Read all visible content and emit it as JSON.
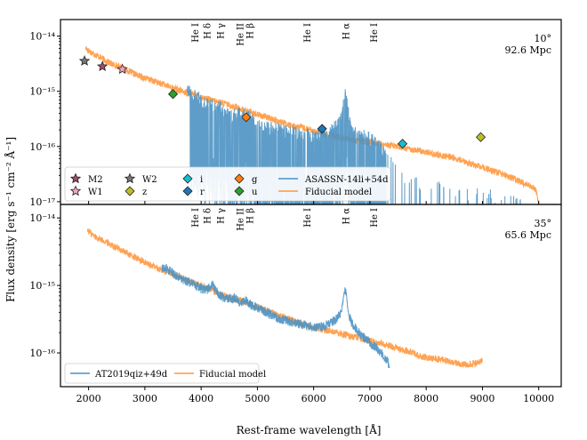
{
  "chart_data": {
    "type": "line",
    "shared": {
      "ylabel": "Flux density [erg s⁻¹ cm⁻² Å⁻¹]",
      "xlabel": "Rest-frame wavelength [Å]",
      "xlim": [
        1500,
        10400
      ],
      "xticks": [
        2000,
        3000,
        4000,
        5000,
        6000,
        7000,
        8000,
        9000,
        10000
      ],
      "xtick_labels": [
        "2000",
        "3000",
        "4000",
        "5000",
        "6000",
        "7000",
        "8000",
        "9000",
        "10000"
      ],
      "colors": {
        "observed": "#4c92c3",
        "model": "#ff983e"
      }
    },
    "panels": [
      {
        "id": "top",
        "angle_label": "10°",
        "distance_label": "92.6 Mpc",
        "yscale": "log",
        "ylim_log10": [
          -17.05,
          -13.7
        ],
        "ytick_exponents": [
          -14,
          -15,
          -16,
          -17
        ],
        "ytick_labels": [
          "10⁻¹⁴",
          "10⁻¹⁵",
          "10⁻¹⁶",
          "10⁻¹⁷"
        ],
        "line_markers": [
          {
            "label": "He I",
            "wavelength": 3889
          },
          {
            "label": "H δ",
            "wavelength": 4102
          },
          {
            "label": "H γ",
            "wavelength": 4340
          },
          {
            "label": "He II",
            "wavelength": 4686
          },
          {
            "label": "H β",
            "wavelength": 4861
          },
          {
            "label": "He I",
            "wavelength": 5876
          },
          {
            "label": "H α",
            "wavelength": 6563
          },
          {
            "label": "He I",
            "wavelength": 7065
          }
        ],
        "series": [
          {
            "name": "Fiducial model",
            "kind": "model",
            "x": [
              1950,
              2050,
              2200,
              2400,
              2600,
              2800,
              3000,
              3200,
              3400,
              3600,
              3800,
              4000,
              4200,
              4400,
              4600,
              4800,
              5000,
              5200,
              5400,
              5600,
              5800,
              6000,
              6200,
              6400,
              6600,
              6800,
              7000,
              7200,
              7400,
              7600,
              7800,
              8000,
              8200,
              8400,
              8600,
              8800,
              9000,
              9200,
              9400,
              9600,
              9800,
              9950,
              10000
            ],
            "log10_flux": [
              -14.22,
              -14.3,
              -14.38,
              -14.5,
              -14.58,
              -14.68,
              -14.76,
              -14.83,
              -14.9,
              -14.98,
              -15.04,
              -15.1,
              -15.17,
              -15.22,
              -15.28,
              -15.35,
              -15.42,
              -15.48,
              -15.55,
              -15.62,
              -15.66,
              -15.72,
              -15.78,
              -15.82,
              -15.86,
              -15.9,
              -15.92,
              -15.96,
              -15.98,
              -16.02,
              -16.06,
              -16.1,
              -16.15,
              -16.18,
              -16.25,
              -16.32,
              -16.38,
              -16.45,
              -16.52,
              -16.6,
              -16.7,
              -16.78,
              -17.05
            ],
            "noise": 0.06
          },
          {
            "name": "ASASSN-14li+54d",
            "kind": "observed",
            "x": [
              3750,
              3850,
              3950,
              4050,
              4150,
              4250,
              4350,
              4450,
              4550,
              4650,
              4750,
              4850,
              4950,
              5050,
              5200,
              5400,
              5600,
              5800,
              5950,
              6100,
              6250,
              6400,
              6500,
              6563,
              6620,
              6700,
              6850,
              7000,
              7100,
              7200,
              7300,
              7400,
              7500,
              7650,
              7800,
              8000,
              8200,
              8400,
              8600,
              8800,
              9000,
              9200,
              9400,
              9600,
              9700
            ],
            "log10_flux": [
              -14.95,
              -15.05,
              -15.12,
              -15.2,
              -15.26,
              -15.25,
              -15.3,
              -15.42,
              -15.45,
              -15.4,
              -15.42,
              -15.48,
              -15.56,
              -15.6,
              -15.66,
              -15.7,
              -15.74,
              -15.78,
              -15.8,
              -15.8,
              -15.75,
              -15.64,
              -15.45,
              -15.02,
              -15.42,
              -15.72,
              -15.8,
              -15.85,
              -15.95,
              -16.02,
              -16.1,
              -16.2,
              -16.5,
              -16.7,
              -16.6,
              -16.8,
              -16.6,
              -16.9,
              -16.7,
              -16.95,
              -16.8,
              -16.9,
              -17.0,
              -16.9,
              -17.0
            ],
            "noise": 0.12
          }
        ],
        "photometry": [
          {
            "band": "W2",
            "wavelength": 1928,
            "log10_flux": -14.45,
            "marker": "star",
            "color": "#777777"
          },
          {
            "band": "M2",
            "wavelength": 2246,
            "log10_flux": -14.55,
            "marker": "star",
            "color": "#9f4a63"
          },
          {
            "band": "W1",
            "wavelength": 2600,
            "log10_flux": -14.6,
            "marker": "star",
            "color": "#f4a6c6"
          },
          {
            "band": "u",
            "wavelength": 3500,
            "log10_flux": -15.05,
            "marker": "diamond",
            "color": "#2ca02c"
          },
          {
            "band": "g",
            "wavelength": 4800,
            "log10_flux": -15.47,
            "marker": "diamond",
            "color": "#ff7f0e"
          },
          {
            "band": "r",
            "wavelength": 6150,
            "log10_flux": -15.68,
            "marker": "diamond",
            "color": "#1f77b4"
          },
          {
            "band": "i",
            "wavelength": 7580,
            "log10_flux": -15.95,
            "marker": "diamond",
            "color": "#17becf"
          },
          {
            "band": "z",
            "wavelength": 8970,
            "log10_flux": -15.83,
            "marker": "diamond",
            "color": "#bcbd22"
          }
        ],
        "legend": {
          "placement": "lower-left",
          "entries": [
            {
              "label": "M2",
              "marker": "star",
              "color": "#9f4a63"
            },
            {
              "label": "W1",
              "marker": "star",
              "color": "#f4a6c6"
            },
            {
              "label": "W2",
              "marker": "star",
              "color": "#777777"
            },
            {
              "label": "z",
              "marker": "diamond",
              "color": "#bcbd22"
            },
            {
              "label": "i",
              "marker": "diamond",
              "color": "#17becf"
            },
            {
              "label": "r",
              "marker": "diamond",
              "color": "#1f77b4"
            },
            {
              "label": "g",
              "marker": "diamond",
              "color": "#ff7f0e"
            },
            {
              "label": "u",
              "marker": "diamond",
              "color": "#2ca02c"
            },
            {
              "label": "ASASSN-14li+54d",
              "marker": "line",
              "color": "#4c92c3"
            },
            {
              "label": "Fiducial model",
              "marker": "line",
              "color": "#ff983e"
            }
          ]
        }
      },
      {
        "id": "bottom",
        "angle_label": "35°",
        "distance_label": "65.6 Mpc",
        "yscale": "log",
        "ylim_log10": [
          -16.5,
          -13.8
        ],
        "ytick_exponents": [
          -14,
          -15,
          -16
        ],
        "ytick_labels": [
          "10⁻¹⁴",
          "10⁻¹⁵",
          "10⁻¹⁶"
        ],
        "line_markers": [
          {
            "label": "He I",
            "wavelength": 3889
          },
          {
            "label": "H δ",
            "wavelength": 4102
          },
          {
            "label": "H γ",
            "wavelength": 4340
          },
          {
            "label": "He II",
            "wavelength": 4686
          },
          {
            "label": "H β",
            "wavelength": 4861
          },
          {
            "label": "He I",
            "wavelength": 5876
          },
          {
            "label": "H α",
            "wavelength": 6563
          },
          {
            "label": "He I",
            "wavelength": 7065
          }
        ],
        "series": [
          {
            "name": "Fiducial model",
            "kind": "model",
            "x": [
              1980,
              2100,
              2300,
              2500,
              2700,
              2900,
              3100,
              3300,
              3500,
              3700,
              3900,
              4100,
              4300,
              4500,
              4700,
              4900,
              5100,
              5300,
              5500,
              5700,
              5900,
              6100,
              6300,
              6500,
              6700,
              6900,
              7100,
              7300,
              7500,
              7700,
              7900,
              8100,
              8300,
              8500,
              8700,
              8900,
              9000
            ],
            "log10_flux": [
              -14.18,
              -14.27,
              -14.35,
              -14.44,
              -14.53,
              -14.62,
              -14.7,
              -14.77,
              -14.84,
              -14.9,
              -14.97,
              -15.04,
              -15.12,
              -15.17,
              -15.22,
              -15.28,
              -15.35,
              -15.42,
              -15.48,
              -15.55,
              -15.6,
              -15.64,
              -15.68,
              -15.72,
              -15.76,
              -15.8,
              -15.84,
              -15.88,
              -15.94,
              -15.98,
              -16.05,
              -16.08,
              -16.1,
              -16.15,
              -16.17,
              -16.15,
              -16.12
            ],
            "noise": 0.05
          },
          {
            "name": "AT2019qiz+49d",
            "kind": "observed",
            "x": [
              3300,
              3400,
              3500,
              3600,
              3700,
              3800,
              3900,
              4000,
              4100,
              4200,
              4300,
              4400,
              4500,
              4600,
              4700,
              4800,
              4900,
              5000,
              5200,
              5400,
              5600,
              5800,
              6000,
              6200,
              6400,
              6500,
              6563,
              6620,
              6700,
              6800,
              6900,
              7000,
              7100,
              7200,
              7300,
              7350
            ],
            "log10_flux": [
              -14.72,
              -14.76,
              -14.82,
              -14.87,
              -14.92,
              -14.96,
              -15.0,
              -15.05,
              -15.07,
              -14.98,
              -15.12,
              -15.18,
              -15.2,
              -15.18,
              -15.25,
              -15.23,
              -15.3,
              -15.33,
              -15.42,
              -15.5,
              -15.54,
              -15.58,
              -15.62,
              -15.6,
              -15.5,
              -15.38,
              -15.05,
              -15.42,
              -15.6,
              -15.7,
              -15.78,
              -15.85,
              -15.92,
              -16.0,
              -16.1,
              -16.2
            ],
            "noise": 0.07
          }
        ],
        "legend": {
          "placement": "lower-left",
          "entries": [
            {
              "label": "AT2019qiz+49d",
              "marker": "line",
              "color": "#4c92c3"
            },
            {
              "label": "Fiducial model",
              "marker": "line",
              "color": "#ff983e"
            }
          ]
        }
      }
    ]
  }
}
